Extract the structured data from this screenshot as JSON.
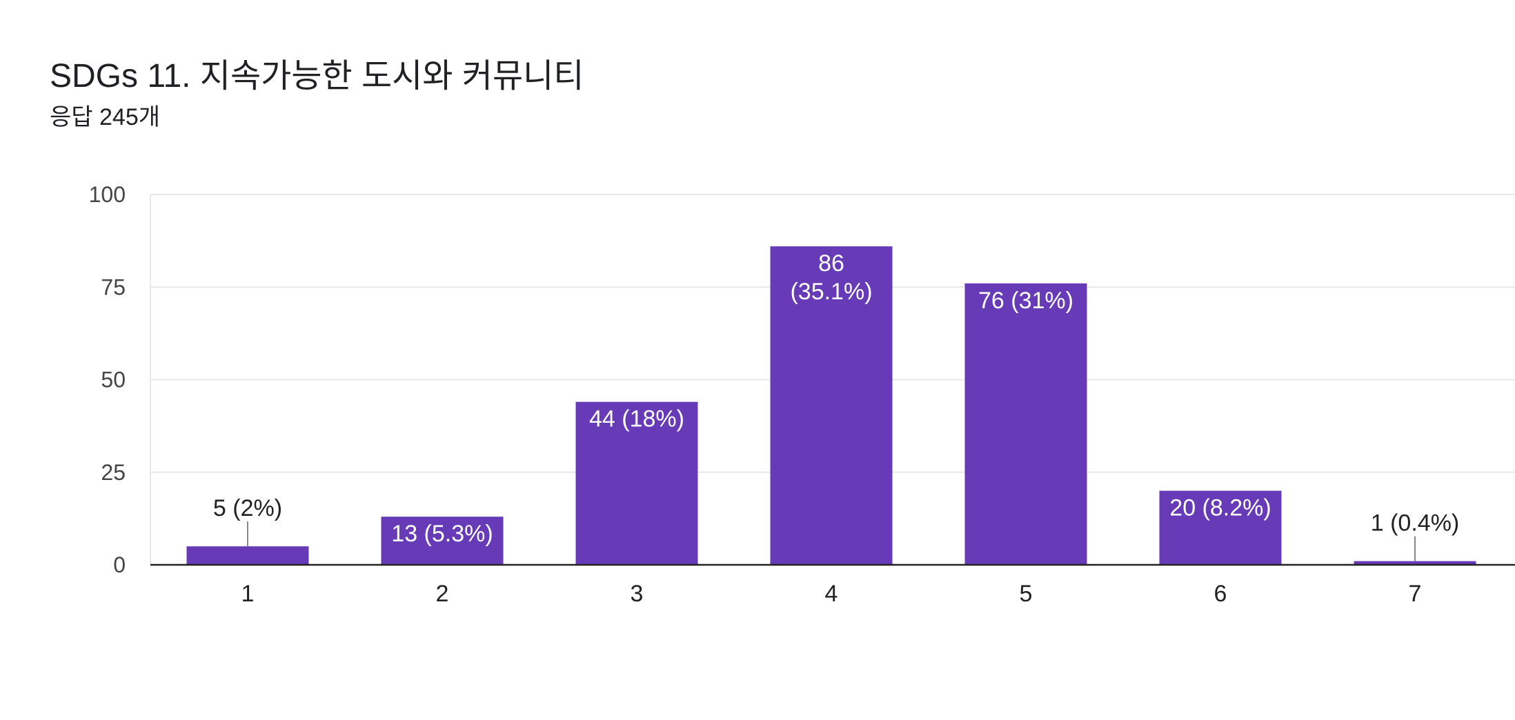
{
  "header": {
    "title": "SDGs 11. 지속가능한 도시와 커뮤니티",
    "subtitle": "응답 245개"
  },
  "colors": {
    "bar": "#673ab7",
    "grid": "#e8e8e8",
    "axis": "#222222",
    "leader": "#888888"
  },
  "chart_data": {
    "type": "bar",
    "categories": [
      "1",
      "2",
      "3",
      "4",
      "5",
      "6",
      "7"
    ],
    "values": [
      5,
      13,
      44,
      86,
      76,
      20,
      1
    ],
    "data_labels": [
      "5 (2%)",
      "13 (5.3%)",
      "44 (18%)",
      "86 (35.1%)",
      "76 (31%)",
      "20 (8.2%)",
      "1 (0.4%)"
    ],
    "ylim": [
      0,
      100
    ],
    "yticks": [
      0,
      25,
      50,
      75,
      100
    ],
    "grid": true,
    "legend": "none"
  }
}
